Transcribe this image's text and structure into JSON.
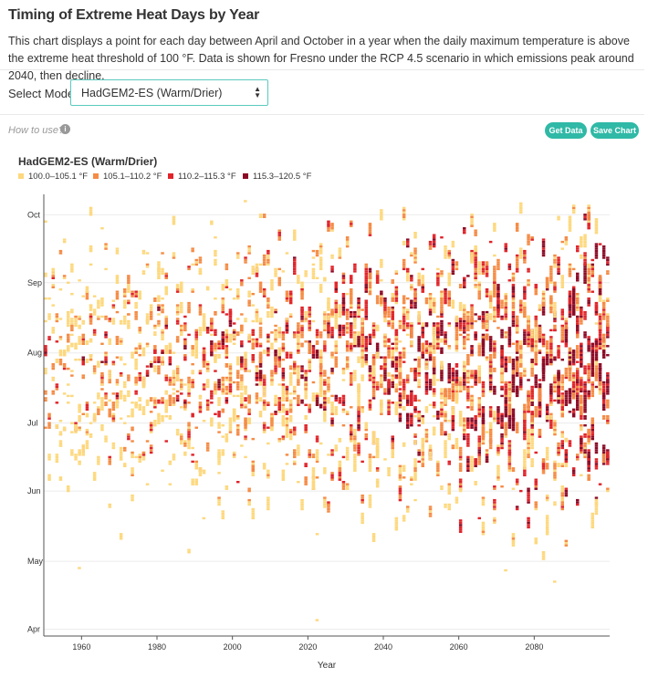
{
  "header": {
    "title": "Timing of Extreme Heat Days by Year",
    "description": "This chart displays a point for each day between April and October in a year when the daily maximum temperature is above the extreme heat threshold of 100 °F. Data is shown for Fresno under the RCP 4.5 scenario in which emissions peak around 2040, then decline."
  },
  "controls": {
    "select_label": "Select Model",
    "select_value": "HadGEM2-ES (Warm/Drier)",
    "how_to_use": "How to use?",
    "info_icon": "i",
    "get_data_label": "Get Data",
    "save_chart_label": "Save Chart"
  },
  "chart_data": {
    "type": "scatter",
    "title": "HadGEM2-ES (Warm/Drier)",
    "xlabel": "Year",
    "ylabel": "",
    "xlim": [
      1950,
      2100
    ],
    "x_ticks": [
      1960,
      1980,
      2000,
      2020,
      2040,
      2060,
      2080
    ],
    "y_ticks": [
      "Apr",
      "May",
      "Jun",
      "Jul",
      "Aug",
      "Sep",
      "Oct"
    ],
    "y_tick_day_of_year": [
      91,
      121,
      152,
      182,
      213,
      244,
      274
    ],
    "grid": "horizontal",
    "legend": [
      {
        "label": "100.0–105.1 °F",
        "color": "#fdd87d"
      },
      {
        "label": "105.1–110.2 °F",
        "color": "#f58b45"
      },
      {
        "label": "110.2–115.3 °F",
        "color": "#e0242a"
      },
      {
        "label": "115.3–120.5 °F",
        "color": "#8b0a26"
      }
    ],
    "series": [
      {
        "name": "100.0–105.1 °F",
        "color": "#fdd87d",
        "points_per_year_approx": "rising from ~15 in 1950 to ~60 in 2099"
      },
      {
        "name": "105.1–110.2 °F",
        "color": "#f58b45"
      },
      {
        "name": "110.2–115.3 °F",
        "color": "#e0242a"
      },
      {
        "name": "115.3–120.5 °F",
        "color": "#8b0a26"
      }
    ],
    "x": "each year 1950–2099",
    "y": "day of year (mid-April to early October, densest in July–August)"
  }
}
